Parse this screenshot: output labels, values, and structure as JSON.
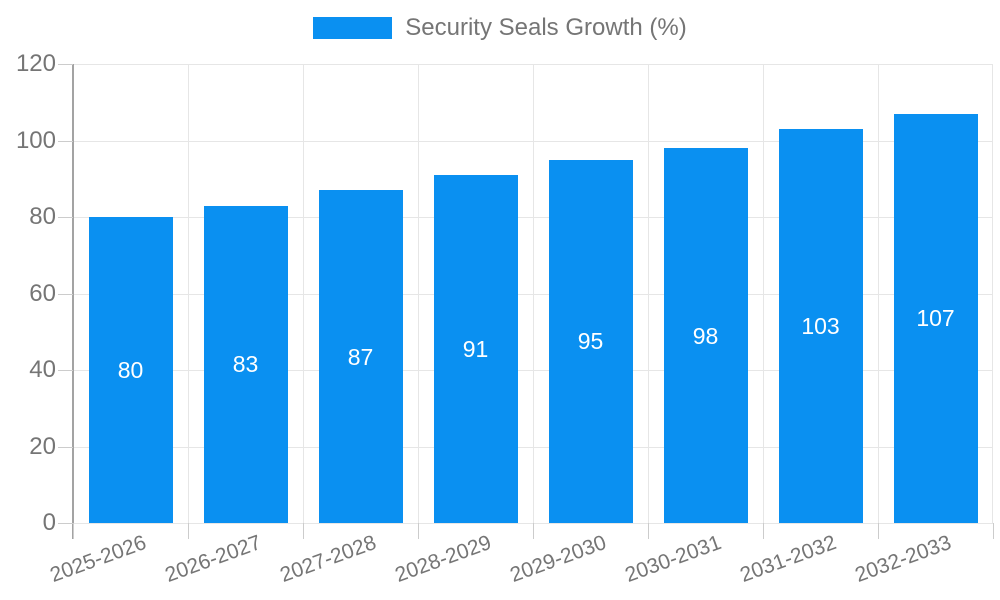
{
  "legend": {
    "label": "Security Seals Growth (%)"
  },
  "colors": {
    "bar": "#0a90f1",
    "grid": "#e6e6e6",
    "axis": "#a3a3a3",
    "tick": "#cccccc",
    "axis_label": "#757575",
    "value_label": "#ffffff",
    "background": "#ffffff"
  },
  "chart_data": {
    "type": "bar",
    "title": "Security Seals Growth (%)",
    "categories": [
      "2025-2026",
      "2026-2027",
      "2027-2028",
      "2028-2029",
      "2029-2030",
      "2030-2031",
      "2031-2032",
      "2032-2033"
    ],
    "values": [
      80,
      83,
      87,
      91,
      95,
      98,
      103,
      107
    ],
    "xlabel": "",
    "ylabel": "",
    "ylim": [
      0,
      120
    ],
    "yticks": [
      0,
      20,
      40,
      60,
      80,
      100,
      120
    ],
    "grid": true,
    "legend_position": "top",
    "value_labels": "inside-center"
  }
}
